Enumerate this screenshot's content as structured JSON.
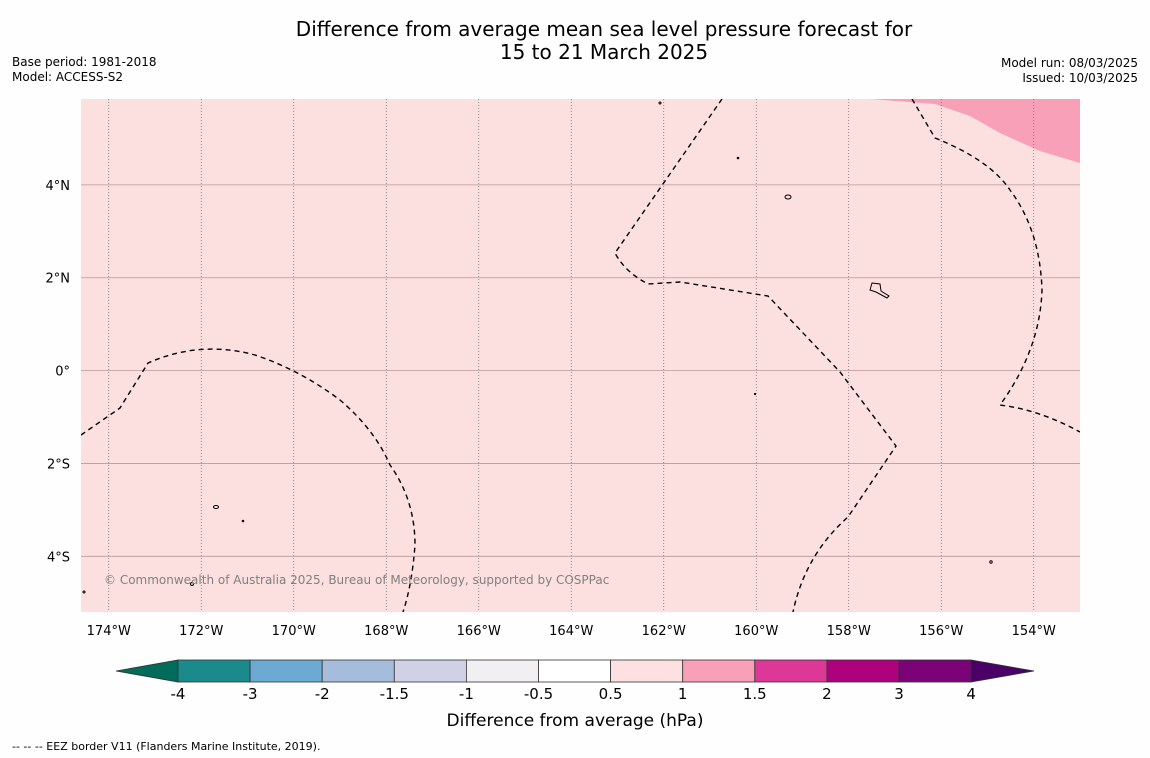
{
  "title_line1": "Difference from average mean sea level pressure forecast for",
  "title_line2": "15 to 21 March 2025",
  "meta_left": {
    "base_period": "Base period: 1981-2018",
    "model": "Model: ACCESS-S2"
  },
  "meta_right": {
    "model_run": "Model run: 08/03/2025",
    "issued": "Issued: 10/03/2025"
  },
  "copyright": "© Commonwealth of Australia 2025, Bureau of Meteorology, supported by COSPPac",
  "footnote": "--  --  -- EEZ border V11 (Flanders Marine Institute, 2019).",
  "map": {
    "lon_range": [
      -174.6,
      -153.0
    ],
    "lat_range": [
      -5.2,
      5.85
    ],
    "lon_ticks": [
      {
        "value": -174,
        "label": "174°W"
      },
      {
        "value": -172,
        "label": "172°W"
      },
      {
        "value": -170,
        "label": "170°W"
      },
      {
        "value": -168,
        "label": "168°W"
      },
      {
        "value": -166,
        "label": "166°W"
      },
      {
        "value": -164,
        "label": "164°W"
      },
      {
        "value": -162,
        "label": "162°W"
      },
      {
        "value": -160,
        "label": "160°W"
      },
      {
        "value": -158,
        "label": "158°W"
      },
      {
        "value": -156,
        "label": "156°W"
      },
      {
        "value": -154,
        "label": "154°W"
      }
    ],
    "lat_ticks": [
      {
        "value": 4,
        "label": "4°N"
      },
      {
        "value": 2,
        "label": "2°N"
      },
      {
        "value": 0,
        "label": "0°"
      },
      {
        "value": -2,
        "label": "2°S"
      },
      {
        "value": -4,
        "label": "4°S"
      }
    ],
    "background_color": "#fcdfdf",
    "region_color": "#f8a0b8"
  },
  "colorbar": {
    "title": "Difference from average (hPa)",
    "labels": [
      "-4",
      "-3",
      "-2",
      "-1.5",
      "-1",
      "-0.5",
      "0.5",
      "1",
      "1.5",
      "2",
      "3",
      "4"
    ],
    "colors": [
      "#1a8a8c",
      "#6aaad3",
      "#a6bcdd",
      "#d0d1e6",
      "#f1eff2",
      "#ffffff",
      "#fde1e2",
      "#f8a0b8",
      "#dd3898",
      "#ad017e",
      "#7b0277"
    ],
    "low_extend_color": "#016c59",
    "high_extend_color": "#4a0066"
  }
}
